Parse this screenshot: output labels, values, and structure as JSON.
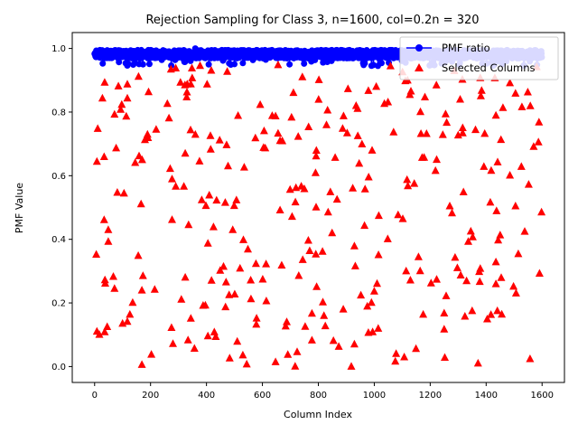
{
  "chart_data": {
    "type": "scatter",
    "title": "Rejection Sampling for Class 3, n=1600, col=0.2n = 320",
    "xlabel": "Column Index",
    "ylabel": "PMF Value",
    "xlim": [
      -80,
      1680
    ],
    "ylim": [
      -0.05,
      1.05
    ],
    "xticks": [
      0,
      200,
      400,
      600,
      800,
      1000,
      1200,
      1400,
      1600
    ],
    "yticks": [
      0.0,
      0.2,
      0.4,
      0.6,
      0.8,
      1.0
    ],
    "ytick_labels": [
      "0.0",
      "0.2",
      "0.4",
      "0.6",
      "0.8",
      "1.0"
    ],
    "grid": false,
    "legend_position": "top-right",
    "series": [
      {
        "name": "PMF ratio",
        "marker": "circle-line",
        "color": "#0000ff",
        "n_points": 1600,
        "y_typical_range": [
          0.955,
          0.995
        ],
        "y_max": 1.0
      },
      {
        "name": "Selected Columns",
        "marker": "triangle",
        "color": "#ff0000",
        "n_points": 320,
        "y_range": [
          0.0,
          0.95
        ]
      }
    ]
  }
}
